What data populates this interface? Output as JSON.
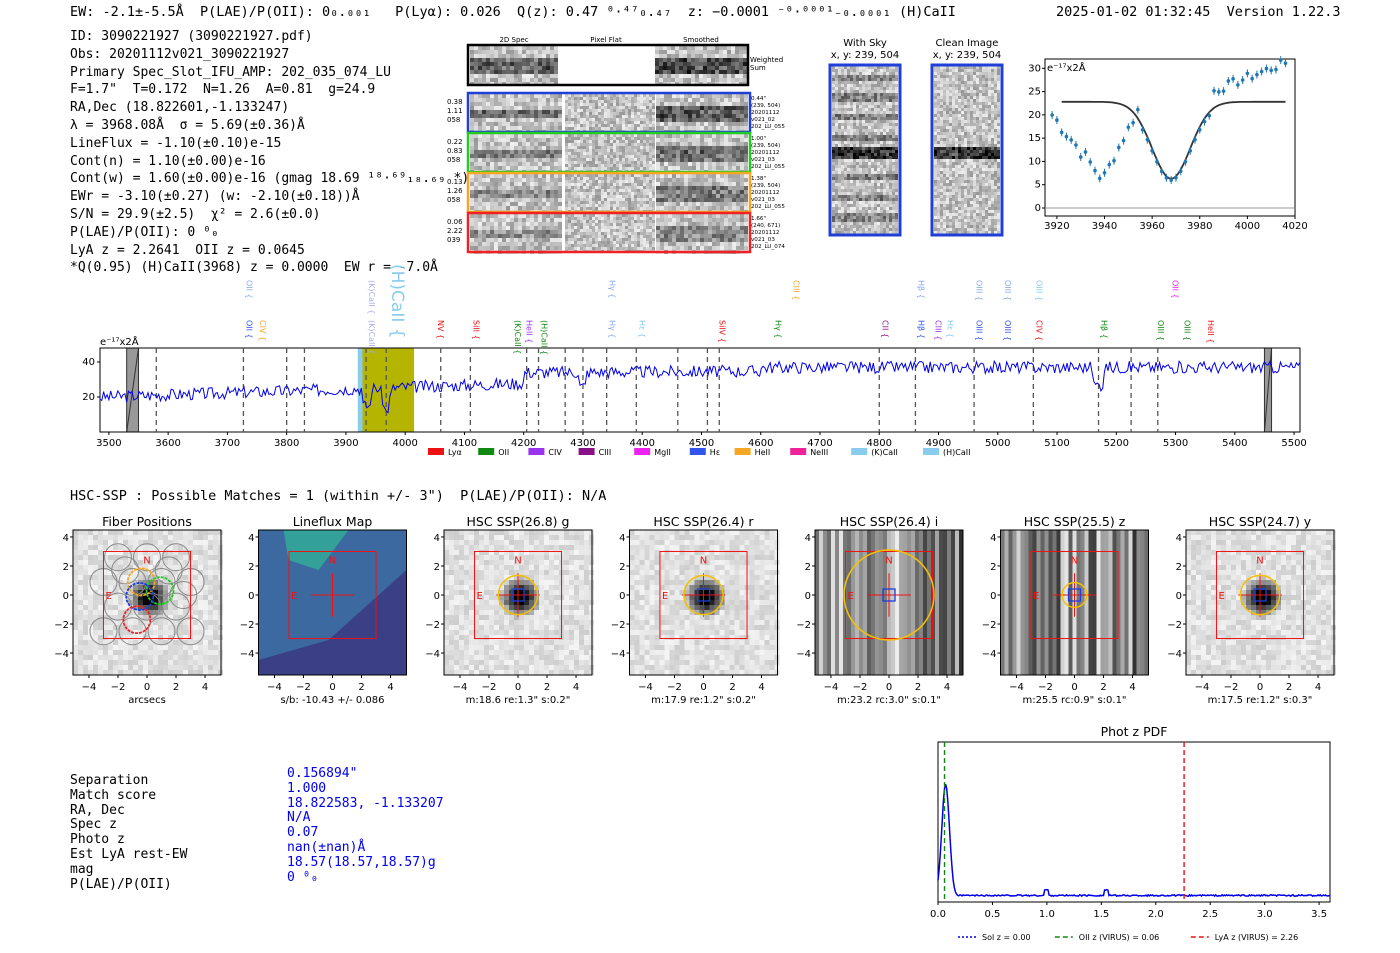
{
  "header": {
    "left": "EW: -2.1±-5.5Å  P(LAE)/P(OII): 0₀.₀₀₁   P(Lyα): 0.026  Q(z): 0.47 ⁰·⁴⁷₀.₄₇  z: −0.0001 ⁻⁰·⁰⁰⁰¹₋₀.₀₀₀₁ (H)CaII",
    "right": "2025-01-02 01:32:45  Version 1.22.3"
  },
  "info_lines": [
    "ID: 3090221927 (3090221927.pdf)",
    "Obs: 20201112v021_3090221927",
    "Primary Spec_Slot_IFU_AMP: 202_035_074_LU",
    "F=1.7\"  T=0.172  N=1.26  A=0.81  g=24.9",
    "RA,Dec (18.822601,-1.133247)",
    "λ = 3968.08Å  σ = 5.69(±0.36)Å",
    "LineFlux = -1.10(±0.10)e-15",
    "Cont(n) = 1.10(±0.00)e-16",
    "Cont(w) = 1.60(±0.00)e-16 (gmag 18.69 ¹⁸·⁶⁹₁₈.₆₉ *)",
    "EWr = -3.10(±0.27) (w: -2.10(±0.18))Å",
    "S/N = 29.9(±2.5)  χ² = 2.6(±0.0)",
    "P(LAE)/P(OII): 0 ⁰₀",
    "LyA z = 2.2641  OII z = 0.0645",
    "*Q(0.95) (H)CaII(3968) z = 0.0000  EW r = -7.0Å"
  ],
  "cutouts": {
    "col_headers": [
      "2D Spec",
      "Pixel Flat",
      "Smoothed"
    ],
    "weighted_label": "Weighted Sum",
    "rows": [
      {
        "vals": [
          "0.38",
          "1.11",
          "058"
        ],
        "meta": [
          "0.44\"",
          "(239, 504)",
          "20201112",
          "v021_02",
          "202_LU_055"
        ],
        "color": "#1f3fd6"
      },
      {
        "vals": [
          "0.22",
          "0.83",
          "058"
        ],
        "meta": [
          "1.00\"",
          "(239, 504)",
          "20201112",
          "v021_03",
          "202_LU_055"
        ],
        "color": "#22cc22"
      },
      {
        "vals": [
          "0.13",
          "1.26",
          "058"
        ],
        "meta": [
          "1.38\"",
          "(239, 504)",
          "20201112",
          "v021_03",
          "202_LU_055"
        ],
        "color": "#f5a623"
      },
      {
        "vals": [
          "0.06",
          "2.22",
          "039"
        ],
        "meta": [
          "1.66\"",
          "(240, 671)",
          "20201112",
          "v021_03",
          "202_LU_074"
        ],
        "color": "#ee2222"
      }
    ]
  },
  "sky_panels": [
    {
      "title": "With Sky",
      "sub": "x, y: 239, 504"
    },
    {
      "title": "Clean Image",
      "sub": "x, y: 239, 504"
    }
  ],
  "zoom_plot": {
    "ylabel": "e⁻¹⁷x2Å",
    "xticks": [
      "3920",
      "3940",
      "3960",
      "3980",
      "4000",
      "4020"
    ],
    "yticks": [
      "0",
      "5",
      "10",
      "15",
      "20",
      "25",
      "30"
    ]
  },
  "spectrum": {
    "ylabel": "e⁻¹⁷x2Å",
    "yticks": [
      "20",
      "40"
    ],
    "xticks": [
      "3500",
      "3600",
      "3700",
      "3800",
      "3900",
      "4000",
      "4100",
      "4200",
      "4300",
      "4400",
      "4500",
      "4600",
      "4700",
      "4800",
      "4900",
      "5000",
      "5100",
      "5200",
      "5300",
      "5400",
      "5500"
    ],
    "legend": [
      {
        "name": "Lyα",
        "color": "#ee1111"
      },
      {
        "name": "OII",
        "color": "#118811"
      },
      {
        "name": "CIV",
        "color": "#9933ee"
      },
      {
        "name": "CIII",
        "color": "#881188"
      },
      {
        "name": "MgII",
        "color": "#ee22ee"
      },
      {
        "name": "Hε",
        "color": "#3355ee"
      },
      {
        "name": "HeII",
        "color": "#f5a623"
      },
      {
        "name": "NeIII",
        "color": "#ee2299"
      },
      {
        "name": "(K)CaII",
        "color": "#88ccee"
      },
      {
        "name": "(H)CaII",
        "color": "#88ccee"
      }
    ],
    "lines_upper": [
      {
        "t": "OII",
        "w": 3727,
        "c": "#88aaee"
      },
      {
        "t": "(K)CaII",
        "w": 3934,
        "c": "#aaaaee"
      },
      {
        "t": "(H)CaII",
        "w": 3968,
        "c": "#88ccee"
      },
      {
        "t": "Hγ",
        "w": 4340,
        "c": "#88aaee"
      },
      {
        "t": "CIII",
        "w": 4650,
        "c": "#f5a623"
      },
      {
        "t": "Hβ",
        "w": 4861,
        "c": "#88aaee"
      },
      {
        "t": "OIII",
        "w": 4959,
        "c": "#88aaee"
      },
      {
        "t": "OIII",
        "w": 5007,
        "c": "#88aaee"
      },
      {
        "t": "OIII",
        "w": 5060,
        "c": "#88ccee"
      },
      {
        "t": "OII",
        "w": 5290,
        "c": "#ee22ee"
      }
    ],
    "lines_lower": [
      {
        "t": "OII",
        "w": 3727,
        "c": "#3355ee"
      },
      {
        "t": "CIV",
        "w": 3750,
        "c": "#f5a623"
      },
      {
        "t": "(K)CaII",
        "w": 3934,
        "c": "#aaaaee"
      },
      {
        "t": "NV",
        "w": 4050,
        "c": "#ee1111"
      },
      {
        "t": "SiII",
        "w": 4110,
        "c": "#ee1111"
      },
      {
        "t": "HeII",
        "w": 4200,
        "c": "#9933ee"
      },
      {
        "t": "(K)CaII",
        "w": 4180,
        "c": "#118811"
      },
      {
        "t": "(H)CaII",
        "w": 4225,
        "c": "#118811"
      },
      {
        "t": "Hγ",
        "w": 4340,
        "c": "#88aaee"
      },
      {
        "t": "Hε",
        "w": 4390,
        "c": "#88ccee"
      },
      {
        "t": "SiIV",
        "w": 4525,
        "c": "#ee1111"
      },
      {
        "t": "Hγ",
        "w": 4620,
        "c": "#118811"
      },
      {
        "t": "CII",
        "w": 4800,
        "c": "#881188"
      },
      {
        "t": "Hβ",
        "w": 4861,
        "c": "#3355ee"
      },
      {
        "t": "CIII",
        "w": 4890,
        "c": "#9933ee"
      },
      {
        "t": "Hε",
        "w": 4910,
        "c": "#88ccee"
      },
      {
        "t": "OIII",
        "w": 4959,
        "c": "#3355ee"
      },
      {
        "t": "OIII",
        "w": 5007,
        "c": "#3355ee"
      },
      {
        "t": "CIV",
        "w": 5060,
        "c": "#ee1111"
      },
      {
        "t": "Hβ",
        "w": 5170,
        "c": "#118811"
      },
      {
        "t": "OIII",
        "w": 5265,
        "c": "#118811"
      },
      {
        "t": "OIII",
        "w": 5310,
        "c": "#118811"
      },
      {
        "t": "HeII",
        "w": 5350,
        "c": "#ee1111"
      }
    ]
  },
  "hsc": {
    "heading": "HSC-SSP : Possible Matches = 1 (within +/- 3\")  P(LAE)/P(OII): N/A",
    "panels": [
      {
        "title": "Fiber Positions",
        "caption": "arcsecs",
        "kind": "fiber"
      },
      {
        "title": "Lineflux Map",
        "caption": "s/b: -10.43 +/- 0.086",
        "kind": "flux"
      },
      {
        "title": "HSC SSP(26.8) g",
        "caption": "m:18.6  re:1.3\"  s:0.2\"",
        "kind": "star"
      },
      {
        "title": "HSC SSP(26.4) r",
        "caption": "m:17.9  re:1.2\"  s:0.2\"",
        "kind": "star"
      },
      {
        "title": "HSC SSP(26.4) i",
        "caption": "m:23.2  rc:3.0\"  s:0.1\"",
        "kind": "stripes"
      },
      {
        "title": "HSC SSP(25.5) z",
        "caption": "m:25.5  rc:0.9\"  s:0.1\"",
        "kind": "stripes2"
      },
      {
        "title": "HSC SSP(24.7) y",
        "caption": "m:17.5  re:1.2\"  s:0.3\"",
        "kind": "star"
      }
    ],
    "ticks": [
      "−4",
      "−2",
      "0",
      "2",
      "4"
    ],
    "n_label": "N",
    "e_label": "E"
  },
  "match": {
    "labels": [
      "Separation",
      "Match score",
      "RA, Dec",
      "Spec z",
      "Photo z",
      "Est LyA rest-EW",
      "mag",
      "P(LAE)/P(OII)"
    ],
    "values": [
      "0.156894\"",
      "1.000",
      "18.822583, -1.133207",
      "N/A",
      "0.07",
      "nan(±nan)Å",
      "18.57(18.57,18.57)g",
      "0 ⁰₀"
    ]
  },
  "photz": {
    "title": "Phot z PDF",
    "xticks": [
      "0.0",
      "0.5",
      "1.0",
      "1.5",
      "2.0",
      "2.5",
      "3.0",
      "3.5"
    ],
    "xmax": 3.6,
    "oii_z": 0.06,
    "lya_z": 2.26,
    "legend": [
      {
        "name": "Sol z = 0.00",
        "color": "#0000ee",
        "dash": "2,2"
      },
      {
        "name": "OII z (VIRUS) = 0.06",
        "color": "#118811",
        "dash": "5,3"
      },
      {
        "name": "LyA z (VIRUS) = 2.26",
        "color": "#ee1111",
        "dash": "5,3"
      }
    ]
  },
  "colors": {
    "accent": "#0000ee",
    "cutout_weighted": "#000000",
    "highlight": "#b5b500"
  }
}
